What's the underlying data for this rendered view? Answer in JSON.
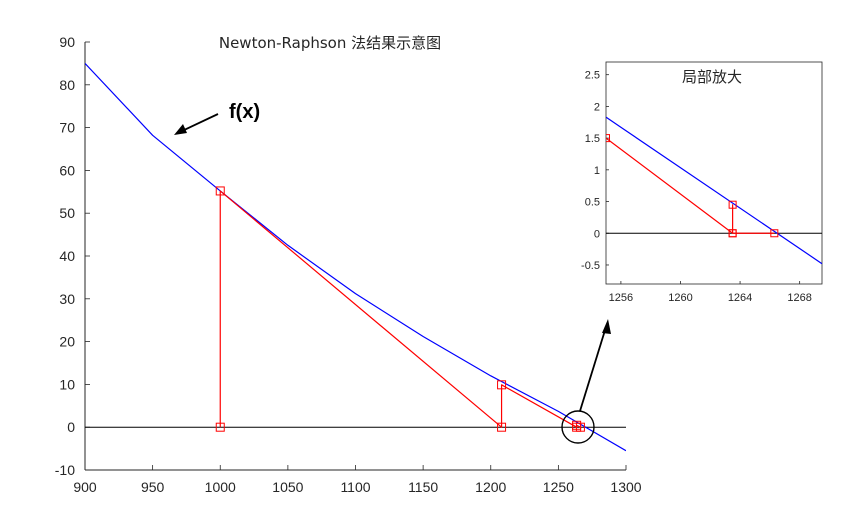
{
  "chart_data": [
    {
      "type": "line",
      "title": "Newton-Raphson 法结果示意图",
      "xlabel": "",
      "ylabel": "",
      "xlim": [
        900,
        1300
      ],
      "ylim": [
        -10,
        90
      ],
      "xticks": [
        "900",
        "950",
        "1000",
        "1050",
        "1100",
        "1150",
        "1200",
        "1250",
        "1300"
      ],
      "yticks": [
        "-10",
        "0",
        "10",
        "20",
        "30",
        "40",
        "50",
        "60",
        "70",
        "80",
        "90"
      ],
      "grid": false,
      "series": [
        {
          "color": "#0000ff",
          "x": [
            900,
            950,
            1000,
            1050,
            1100,
            1150,
            1200,
            1250,
            1300
          ],
          "y": [
            85,
            68.2,
            55.2,
            42.5,
            31.2,
            21.2,
            12.0,
            3.7,
            -5.5
          ]
        },
        {
          "color": "#ff0000",
          "marker": "square",
          "x": [
            1000,
            1000,
            1208,
            1208,
            1263.5,
            1263.5,
            1266.3
          ],
          "y": [
            0,
            55.2,
            0,
            9.9,
            0,
            0.45,
            0
          ]
        }
      ],
      "baseline_y": 0,
      "annotations": [
        {
          "text": "f(x)"
        }
      ]
    },
    {
      "type": "line",
      "title": "局部放大",
      "xlim": [
        1255,
        1269.5
      ],
      "ylim": [
        -0.8,
        2.7
      ],
      "xticks": [
        "1256",
        "1260",
        "1264",
        "1268"
      ],
      "yticks": [
        "-0.5",
        "0",
        "0.5",
        "1",
        "1.5",
        "2",
        "2.5"
      ],
      "grid": false,
      "series": [
        {
          "color": "#0000ff",
          "x": [
            1255,
            1269.5
          ],
          "y": [
            1.83,
            -0.48
          ]
        },
        {
          "color": "#ff0000",
          "marker": "square",
          "x": [
            1255,
            1263.5,
            1263.5,
            1263.5,
            1266.3
          ],
          "y": [
            1.5,
            0,
            0.45,
            0,
            0
          ]
        }
      ],
      "baseline_y": 0
    }
  ]
}
